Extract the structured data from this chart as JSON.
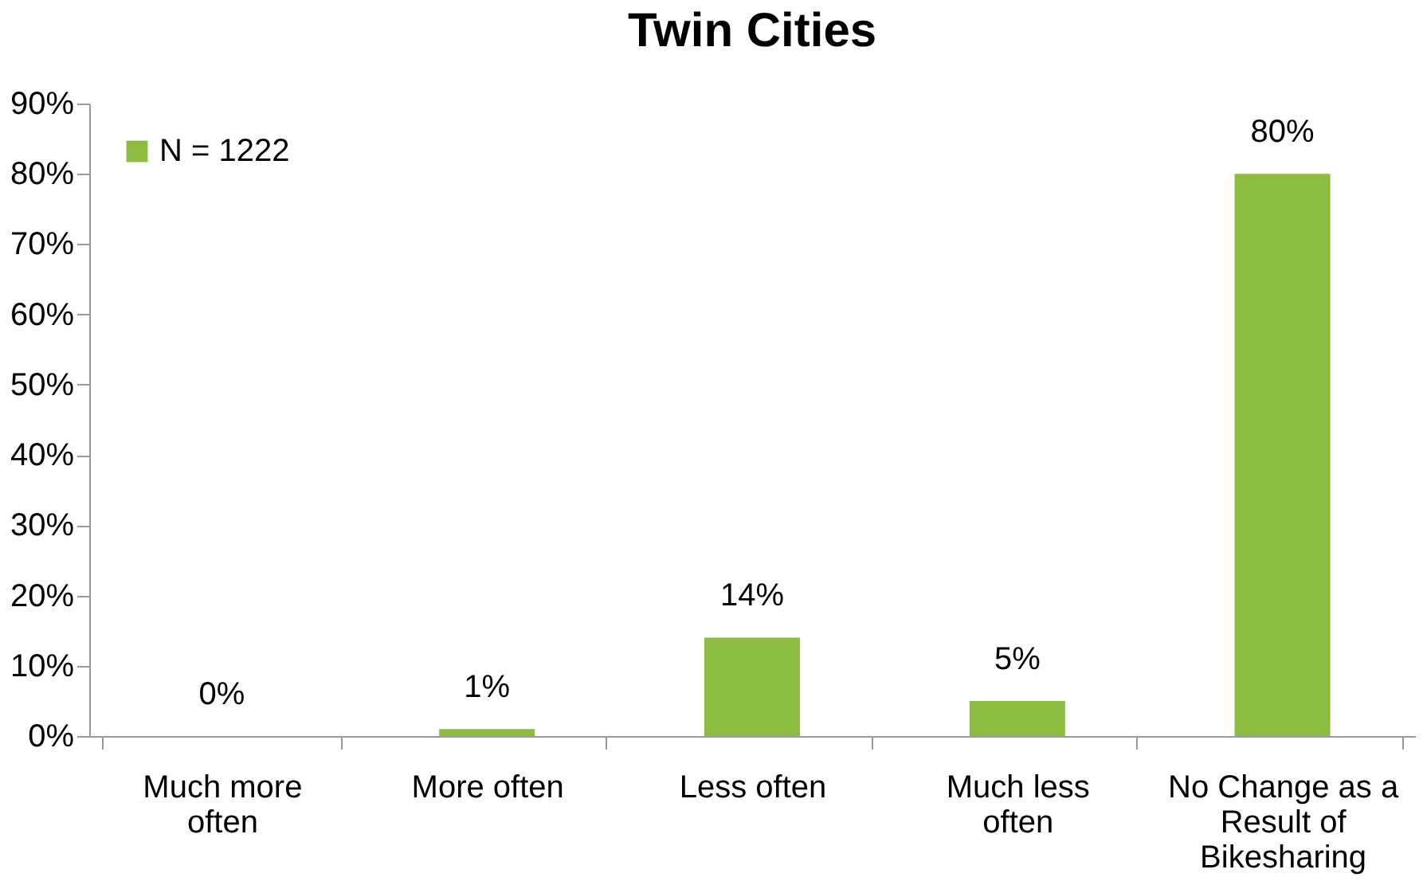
{
  "chart_data": {
    "type": "bar",
    "title": "Twin Cities",
    "categories": [
      "Much more often",
      "More often",
      "Less often",
      "Much less often",
      "No Change as a Result of Bikesharing"
    ],
    "series": [
      {
        "name": "N = 1222",
        "color": "#8cbd3f",
        "values": [
          0,
          1,
          14,
          5,
          80
        ],
        "value_labels": [
          "0%",
          "1%",
          "14%",
          "5%",
          "80%"
        ]
      }
    ],
    "ylim": [
      0,
      90
    ],
    "yticks": [
      {
        "value": 0,
        "label": "0%"
      },
      {
        "value": 10,
        "label": "10%"
      },
      {
        "value": 20,
        "label": "20%"
      },
      {
        "value": 30,
        "label": "30%"
      },
      {
        "value": 40,
        "label": "40%"
      },
      {
        "value": 50,
        "label": "50%"
      },
      {
        "value": 60,
        "label": "60%"
      },
      {
        "value": 70,
        "label": "70%"
      },
      {
        "value": 80,
        "label": "80%"
      },
      {
        "value": 90,
        "label": "90%"
      }
    ],
    "grid": false,
    "legend": "top left"
  }
}
